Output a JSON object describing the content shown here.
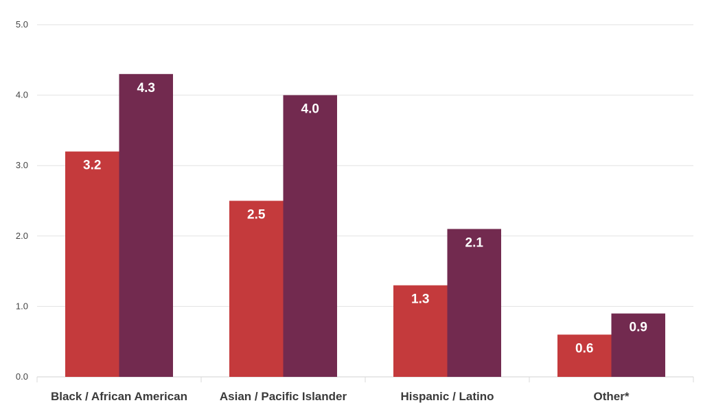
{
  "chart_data": {
    "type": "bar",
    "title": "",
    "xlabel": "",
    "ylabel": "",
    "categories": [
      "Black / African American",
      "Asian / Pacific Islander",
      "Hispanic / Latino",
      "Other*"
    ],
    "series": [
      {
        "values": [
          3.2,
          2.5,
          1.3,
          0.6
        ],
        "color": "#c43a3c"
      },
      {
        "values": [
          4.3,
          4.0,
          2.1,
          0.9
        ],
        "color": "#722a4f"
      }
    ],
    "ylim": [
      0,
      5
    ],
    "yticks": [
      "0.0",
      "1.0",
      "2.0",
      "3.0",
      "4.0",
      "5.0"
    ],
    "grid": true,
    "data_labels": true
  }
}
